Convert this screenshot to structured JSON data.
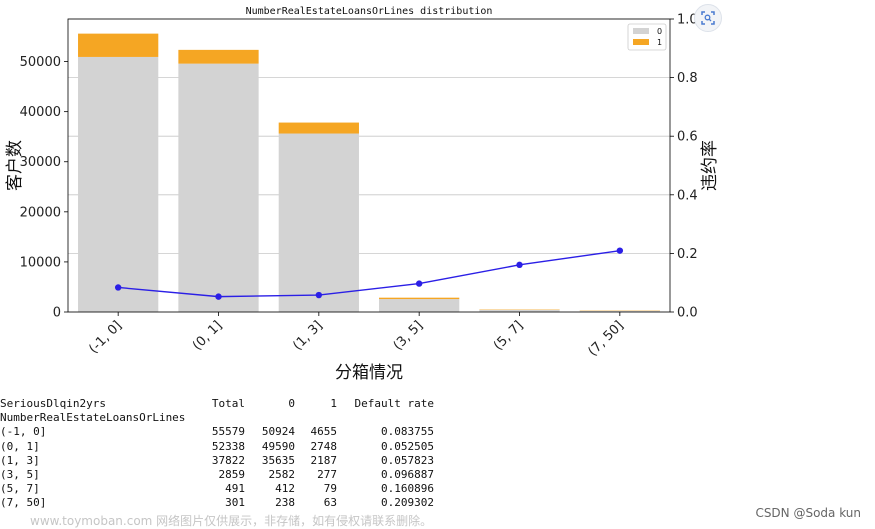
{
  "chart_data": {
    "type": "bar",
    "title": "NumberRealEstateLoansOrLines distribution",
    "xlabel": "分箱情况",
    "ylabel": "客户数",
    "y2label": "违约率",
    "categories": [
      "(-1, 0]",
      "(0, 1]",
      "(1, 3]",
      "(3, 5]",
      "(5, 7]",
      "(7, 50]"
    ],
    "ylim": [
      0,
      58500
    ],
    "y2lim": [
      0,
      1.0
    ],
    "yticks": [
      0,
      10000,
      20000,
      30000,
      40000,
      50000
    ],
    "y2ticks": [
      "0.0",
      "0.2",
      "0.4",
      "0.6",
      "0.8",
      "1.0"
    ],
    "stacked": true,
    "legend_position": "top-right",
    "grid": "horizontal on secondary axis",
    "series": [
      {
        "name": "0",
        "values": [
          50924,
          49590,
          35635,
          2582,
          412,
          238
        ],
        "color": "#d3d3d3"
      },
      {
        "name": "1",
        "values": [
          4655,
          2748,
          2187,
          277,
          79,
          63
        ],
        "color": "#f5a623"
      }
    ],
    "line": {
      "values": [
        0.083755,
        0.052505,
        0.057823,
        0.096887,
        0.160896,
        0.209302
      ],
      "color": "#2b1fe6",
      "axis": "right"
    }
  },
  "table": {
    "header": [
      "SeriousDlqin2yrs",
      "Total",
      "0",
      "1",
      "Default rate"
    ],
    "index_name": "NumberRealEstateLoansOrLines",
    "rows": [
      [
        "(-1, 0]",
        "55579",
        "50924",
        "4655",
        "0.083755"
      ],
      [
        "(0, 1]",
        "52338",
        "49590",
        "2748",
        "0.052505"
      ],
      [
        "(1, 3]",
        "37822",
        "35635",
        "2187",
        "0.057823"
      ],
      [
        "(3, 5]",
        "2859",
        "2582",
        "277",
        "0.096887"
      ],
      [
        "(5, 7]",
        "491",
        "412",
        "79",
        "0.160896"
      ],
      [
        "(7, 50]",
        "301",
        "238",
        "63",
        "0.209302"
      ]
    ]
  },
  "watermark_left": "www.toymoban.com 网络图片仅供展示，非存储，如有侵权请联系删除。",
  "watermark_right": "CSDN @Soda kun",
  "zoom_icon": "zoom-icon"
}
